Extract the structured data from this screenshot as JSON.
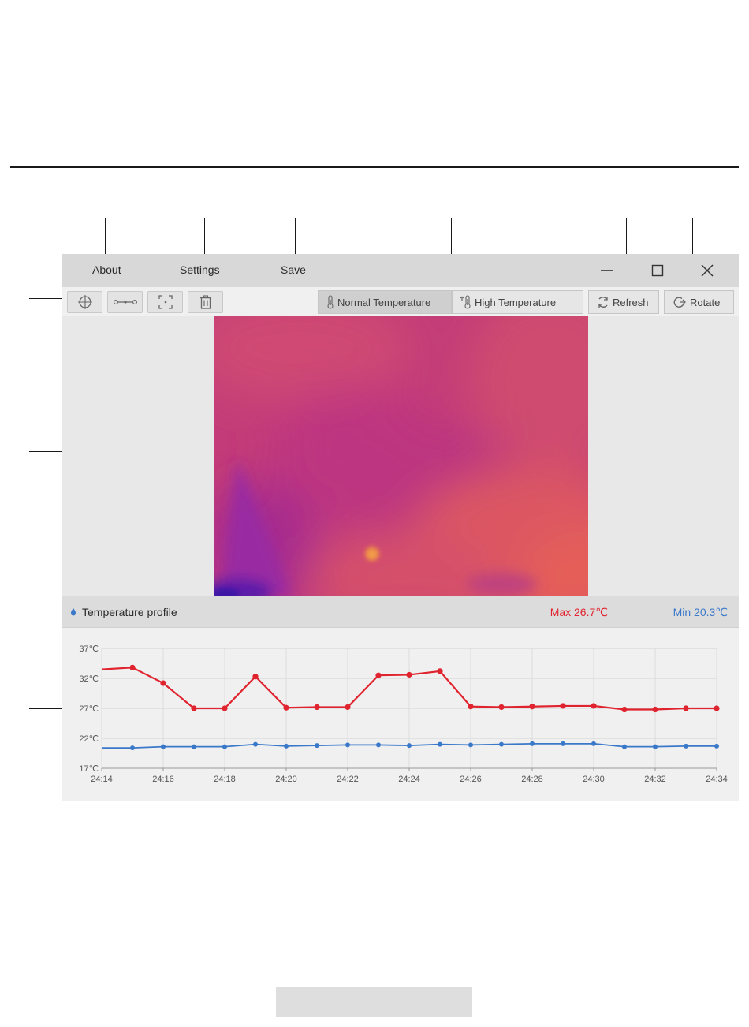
{
  "menu": {
    "about": "About",
    "settings": "Settings",
    "save": "Save"
  },
  "window_controls": [
    "minimize-icon",
    "maximize-icon",
    "close-icon"
  ],
  "toolbar": {
    "tools": [
      "crosshair-icon",
      "line-measure-icon",
      "area-select-icon",
      "trash-icon"
    ],
    "normal_temp": "Normal Temperature",
    "high_temp": "High Temperature",
    "refresh": "Refresh",
    "rotate": "Rotate",
    "active_mode": "normal"
  },
  "profile": {
    "title": "Temperature profile",
    "max": "Max 26.7℃",
    "min": "Min 20.3℃"
  },
  "colors": {
    "max_series": "#e0242f",
    "min_series": "#3a78c9"
  },
  "chart_data": {
    "type": "line",
    "x": [
      "24:14",
      "24:15",
      "24:16",
      "24:17",
      "24:18",
      "24:19",
      "24:20",
      "24:21",
      "24:22",
      "24:23",
      "24:24",
      "24:25",
      "24:26",
      "24:27",
      "24:28",
      "24:29",
      "24:30",
      "24:31",
      "24:32",
      "24:33",
      "24:34"
    ],
    "x_tick_labels": [
      "24:14",
      "24:16",
      "24:18",
      "24:20",
      "24:22",
      "24:24",
      "24:26",
      "24:28",
      "24:30",
      "24:32",
      "24:34"
    ],
    "y_tick_labels": [
      "17℃",
      "22℃",
      "27℃",
      "32℃",
      "37℃"
    ],
    "ylim": [
      17,
      37
    ],
    "grid": true,
    "series": [
      {
        "color": "#e0242f",
        "values": [
          33.5,
          33.8,
          31.2,
          27.0,
          27.0,
          32.3,
          27.1,
          27.2,
          27.2,
          32.5,
          32.6,
          33.2,
          27.3,
          27.2,
          27.3,
          27.4,
          27.4,
          26.8,
          26.8,
          27.0,
          27.0
        ]
      },
      {
        "color": "#3a78c9",
        "values": [
          20.4,
          20.4,
          20.6,
          20.6,
          20.6,
          21.0,
          20.7,
          20.8,
          20.9,
          20.9,
          20.8,
          21.0,
          20.9,
          21.0,
          21.1,
          21.1,
          21.1,
          20.6,
          20.6,
          20.7,
          20.7
        ]
      }
    ]
  }
}
